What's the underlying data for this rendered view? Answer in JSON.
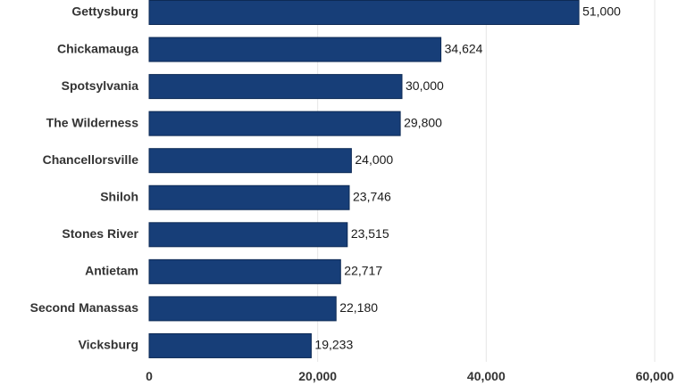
{
  "chart_data": {
    "type": "bar",
    "orientation": "horizontal",
    "categories": [
      "Gettysburg",
      "Chickamauga",
      "Spotsylvania",
      "The Wilderness",
      "Chancellorsville",
      "Shiloh",
      "Stones River",
      "Antietam",
      "Second Manassas",
      "Vicksburg"
    ],
    "values": [
      51000,
      34624,
      30000,
      29800,
      24000,
      23746,
      23515,
      22717,
      22180,
      19233
    ],
    "data_labels": [
      "51,000",
      "34,624",
      "30,000",
      "29,800",
      "24,000",
      "23,746",
      "23,515",
      "22,717",
      "22,180",
      "19,233"
    ],
    "title": "",
    "xlabel": "",
    "ylabel": "",
    "xlim": [
      0,
      60000
    ],
    "x_ticks": [
      0,
      20000,
      40000,
      60000
    ],
    "x_tick_labels": [
      "0",
      "20,000",
      "40,000",
      "60,000"
    ],
    "grid": true,
    "legend": "none",
    "bar_color": "#173e78"
  }
}
